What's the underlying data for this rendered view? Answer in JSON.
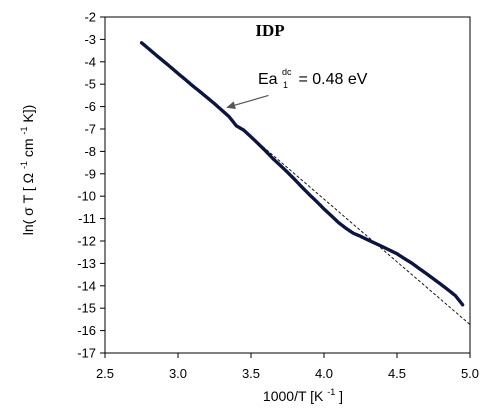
{
  "chart_data": {
    "type": "scatter",
    "title": "IDP",
    "xlabel": "1000/T [K",
    "xlabel_sup": "-1",
    "xlabel_close": "]",
    "ylabel": {
      "prefix": "ln(",
      "sigma": "σ",
      "t": "T [",
      "omega": "Ω",
      "sup1": "-1",
      "cm": "cm",
      "sup2": "-1",
      "tail": "K])"
    },
    "xlim": [
      2.5,
      5.0
    ],
    "ylim": [
      -17,
      -2
    ],
    "x_ticks": [
      "2.5",
      "3.0",
      "3.5",
      "4.0",
      "4.5",
      "5.0"
    ],
    "y_ticks": [
      "-2",
      "-3",
      "-4",
      "-5",
      "-6",
      "-7",
      "-8",
      "-9",
      "-10",
      "-11",
      "-12",
      "-13",
      "-14",
      "-15",
      "-16",
      "-17"
    ],
    "grid": false,
    "series": [
      {
        "style": "markers",
        "color": "#0d1642",
        "x": [
          2.75,
          2.8,
          2.85,
          2.9,
          2.95,
          3.0,
          3.05,
          3.1,
          3.15,
          3.2,
          3.25,
          3.3,
          3.35,
          3.4,
          3.45,
          3.5,
          3.55,
          3.6,
          3.65,
          3.7,
          3.75,
          3.8,
          3.85,
          3.9,
          3.95,
          4.0,
          4.05,
          4.1,
          4.15,
          4.2,
          4.25,
          4.3,
          4.35,
          4.4,
          4.45,
          4.5,
          4.55,
          4.6,
          4.65,
          4.7,
          4.75,
          4.8,
          4.85,
          4.9,
          4.95
        ],
        "y": [
          -3.15,
          -3.42,
          -3.7,
          -3.97,
          -4.24,
          -4.52,
          -4.79,
          -5.07,
          -5.33,
          -5.6,
          -5.87,
          -6.16,
          -6.45,
          -6.86,
          -7.05,
          -7.35,
          -7.66,
          -7.98,
          -8.32,
          -8.62,
          -8.93,
          -9.26,
          -9.6,
          -9.93,
          -10.24,
          -10.57,
          -10.87,
          -11.18,
          -11.43,
          -11.65,
          -11.79,
          -11.95,
          -12.1,
          -12.25,
          -12.41,
          -12.57,
          -12.78,
          -12.98,
          -13.22,
          -13.45,
          -13.69,
          -13.93,
          -14.18,
          -14.44,
          -14.85
        ]
      },
      {
        "style": "dashed-fit",
        "color": "#000000",
        "x": [
          3.45,
          5.0
        ],
        "y": [
          -7.05,
          -15.73
        ]
      }
    ],
    "annotations": [
      {
        "text_main": "Ea",
        "text_sub": "1",
        "text_sup": "dc",
        "text_rest": " = 0.48 eV",
        "arrow_from": [
          3.62,
          -5.5
        ],
        "arrow_to": [
          3.33,
          -6.05
        ]
      }
    ]
  }
}
